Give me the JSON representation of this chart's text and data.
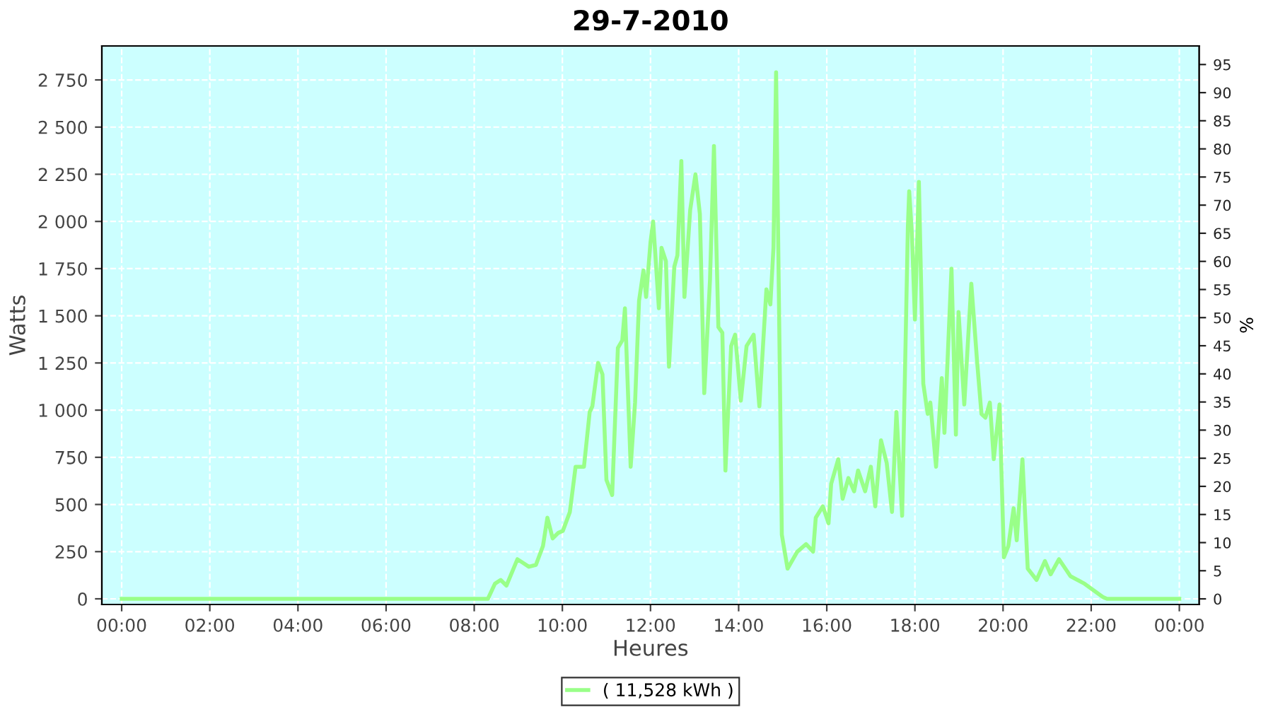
{
  "chart_data": {
    "type": "line",
    "title": "29-7-2010",
    "xlabel": "Heures",
    "ylabel": "Watts",
    "y2label": "%",
    "x": [
      0,
      8.15,
      8.31,
      8.47,
      8.6,
      8.73,
      8.98,
      9.11,
      9.24,
      9.4,
      9.56,
      9.66,
      9.78,
      9.91,
      10.01,
      10.17,
      10.3,
      10.49,
      10.62,
      10.68,
      10.81,
      10.91,
      11.0,
      11.13,
      11.26,
      11.36,
      11.42,
      11.55,
      11.65,
      11.74,
      11.84,
      11.9,
      12.0,
      12.06,
      12.19,
      12.25,
      12.35,
      12.42,
      12.54,
      12.61,
      12.7,
      12.77,
      12.9,
      13.02,
      13.12,
      13.22,
      13.35,
      13.44,
      13.54,
      13.63,
      13.7,
      13.83,
      13.92,
      14.05,
      14.18,
      14.34,
      14.47,
      14.63,
      14.72,
      14.79,
      14.85,
      14.98,
      15.11,
      15.33,
      15.53,
      15.69,
      15.75,
      15.91,
      16.04,
      16.1,
      16.26,
      16.36,
      16.49,
      16.62,
      16.71,
      16.87,
      17.0,
      17.1,
      17.23,
      17.36,
      17.48,
      17.58,
      17.71,
      17.84,
      17.87,
      17.93,
      18.0,
      18.09,
      18.19,
      18.29,
      18.35,
      18.48,
      18.61,
      18.67,
      18.83,
      18.93,
      18.99,
      19.12,
      19.28,
      19.41,
      19.51,
      19.6,
      19.7,
      19.79,
      19.92,
      20.02,
      20.12,
      20.24,
      20.31,
      20.44,
      20.56,
      20.76,
      20.95,
      21.08,
      21.27,
      21.53,
      21.85,
      22.26,
      22.36,
      24
    ],
    "series": [
      {
        "name": "( 11,528 kWh )",
        "color": "#99ff88",
        "values": [
          0,
          0,
          0,
          80,
          100,
          70,
          210,
          190,
          170,
          180,
          280,
          430,
          320,
          350,
          360,
          460,
          700,
          700,
          990,
          1020,
          1250,
          1190,
          630,
          550,
          1330,
          1370,
          1540,
          700,
          1040,
          1580,
          1740,
          1600,
          1890,
          2000,
          1540,
          1860,
          1790,
          1230,
          1760,
          1820,
          2320,
          1600,
          2060,
          2250,
          2040,
          1090,
          1690,
          2400,
          1440,
          1410,
          680,
          1340,
          1400,
          1050,
          1340,
          1400,
          1020,
          1640,
          1560,
          1860,
          2790,
          340,
          160,
          250,
          290,
          250,
          430,
          490,
          400,
          610,
          740,
          530,
          640,
          570,
          680,
          570,
          700,
          490,
          840,
          720,
          460,
          990,
          440,
          1970,
          2160,
          1940,
          1480,
          2210,
          1140,
          980,
          1040,
          700,
          1170,
          880,
          1750,
          870,
          1520,
          1030,
          1670,
          1260,
          980,
          960,
          1040,
          740,
          1030,
          220,
          280,
          480,
          310,
          740,
          160,
          100,
          200,
          130,
          210,
          120,
          80,
          10,
          0,
          0
        ]
      }
    ],
    "xlim": [
      -0.45,
      24.45
    ],
    "xticks": [
      {
        "value": 0,
        "label": "00:00"
      },
      {
        "value": 2,
        "label": "02:00"
      },
      {
        "value": 4,
        "label": "04:00"
      },
      {
        "value": 6,
        "label": "06:00"
      },
      {
        "value": 8,
        "label": "08:00"
      },
      {
        "value": 10,
        "label": "10:00"
      },
      {
        "value": 12,
        "label": "12:00"
      },
      {
        "value": 14,
        "label": "14:00"
      },
      {
        "value": 16,
        "label": "16:00"
      },
      {
        "value": 18,
        "label": "18:00"
      },
      {
        "value": 20,
        "label": "20:00"
      },
      {
        "value": 22,
        "label": "22:00"
      },
      {
        "value": 24,
        "label": "00:00"
      }
    ],
    "ylim": [
      -30,
      2930
    ],
    "yticks": [
      0,
      250,
      500,
      750,
      {
        "value": 1000,
        "label": "1 000"
      },
      {
        "value": 1250,
        "label": "1 250"
      },
      {
        "value": 1500,
        "label": "1 500"
      },
      {
        "value": 1750,
        "label": "1 750"
      },
      {
        "value": 2000,
        "label": "2 000"
      },
      {
        "value": 2250,
        "label": "2 250"
      },
      {
        "value": 2500,
        "label": "2 500"
      },
      {
        "value": 2750,
        "label": "2 750"
      }
    ],
    "y2lim": [
      -1.0,
      98.3
    ],
    "y2ticks": [
      0,
      5,
      10,
      15,
      20,
      25,
      30,
      35,
      40,
      45,
      50,
      55,
      60,
      65,
      70,
      75,
      80,
      85,
      90,
      95
    ],
    "grid": true,
    "legend": "bottom",
    "marker": "none",
    "line_style": "solid"
  }
}
